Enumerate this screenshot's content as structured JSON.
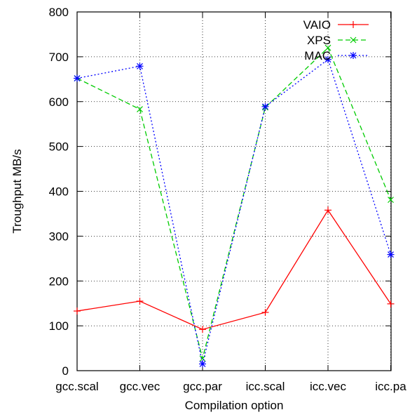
{
  "chart_data": {
    "type": "line",
    "categories": [
      "gcc.scal",
      "gcc.vec",
      "gcc.par",
      "icc.scal",
      "icc.vec",
      "icc.pa"
    ],
    "xlabel": "Compilation option",
    "ylabel": "Troughput MB/s",
    "ylim": [
      0,
      800
    ],
    "yticks": [
      0,
      100,
      200,
      300,
      400,
      500,
      600,
      700,
      800
    ],
    "grid": true,
    "legend_position": "top-right",
    "series": [
      {
        "name": "VAIO",
        "color": "#ff0000",
        "dash": "solid",
        "marker": "plus",
        "values": [
          133,
          155,
          92,
          130,
          358,
          149
        ]
      },
      {
        "name": "XPS",
        "color": "#00cc00",
        "dash": "dashed",
        "marker": "cross",
        "values": [
          652,
          583,
          27,
          587,
          720,
          381
        ]
      },
      {
        "name": "MAC",
        "color": "#0000ff",
        "dash": "dotted",
        "marker": "star",
        "values": [
          652,
          679,
          15,
          589,
          694,
          259
        ]
      }
    ]
  }
}
